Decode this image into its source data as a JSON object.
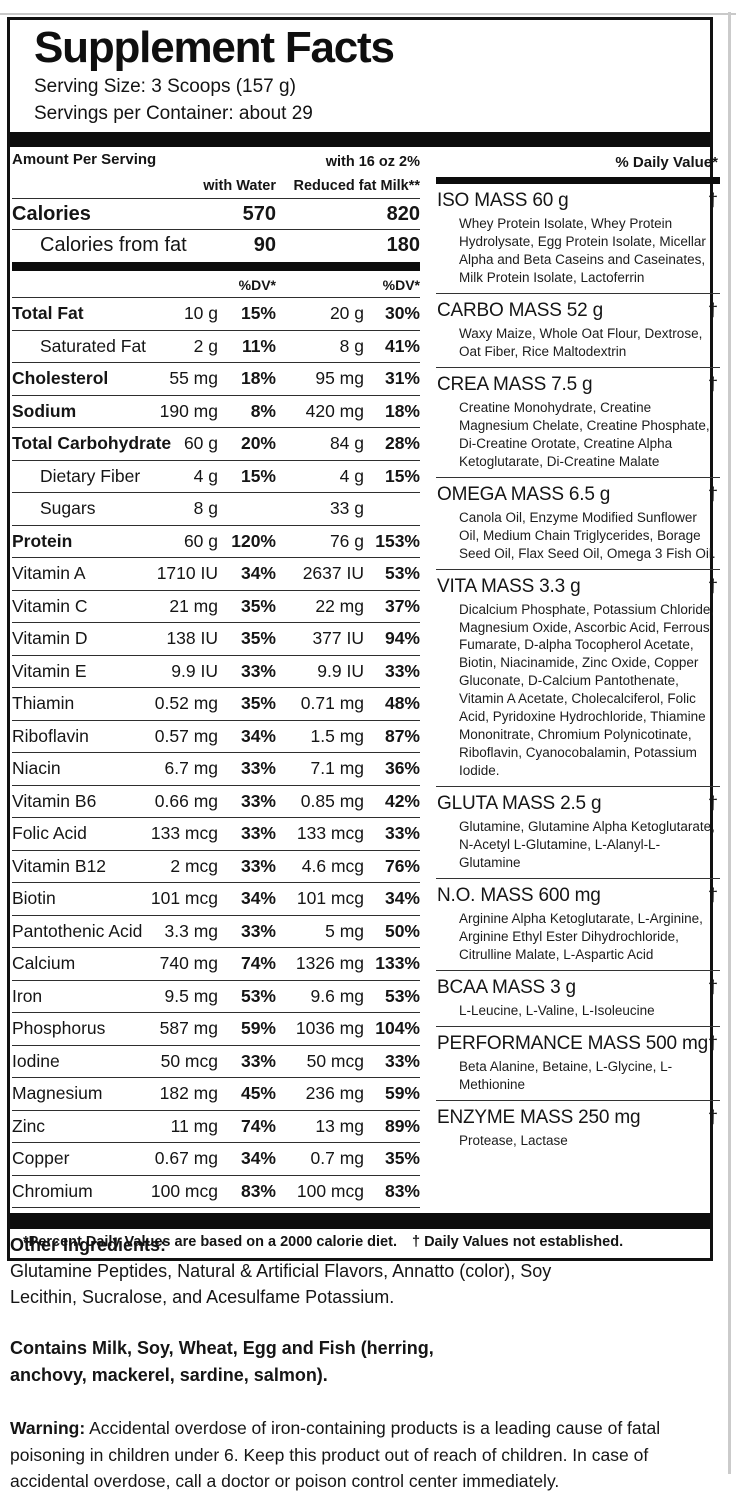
{
  "header": {
    "title": "Supplement Facts",
    "serving_size": "Serving Size: 3 Scoops (157 g)",
    "servings_per_container": "Servings per Container: about 29"
  },
  "table": {
    "amount_per_serving_label": "Amount Per Serving",
    "daily_value_label": "% Daily Value*",
    "col_water_label": "with Water",
    "col_milk_label_line1": "with 16 oz 2%",
    "col_milk_label_line2": "Reduced fat Milk**",
    "dv_col_label": "%DV*",
    "calories_rows": [
      {
        "label": "Calories",
        "water": "570",
        "milk": "820"
      },
      {
        "label": "Calories from fat",
        "water": "90",
        "milk": "180"
      }
    ],
    "nutrients": [
      {
        "label": "Total Fat",
        "style": "main",
        "water_amount": "10 g",
        "water_dv": "15%",
        "milk_amount": "20 g",
        "milk_dv": "30%"
      },
      {
        "label": "Saturated Fat",
        "style": "sub",
        "water_amount": "2 g",
        "water_dv": "11%",
        "milk_amount": "8 g",
        "milk_dv": "41%"
      },
      {
        "label": "Cholesterol",
        "style": "main",
        "water_amount": "55 mg",
        "water_dv": "18%",
        "milk_amount": "95 mg",
        "milk_dv": "31%"
      },
      {
        "label": "Sodium",
        "style": "main",
        "water_amount": "190 mg",
        "water_dv": "8%",
        "milk_amount": "420 mg",
        "milk_dv": "18%"
      },
      {
        "label": "Total Carbohydrate",
        "style": "main",
        "water_amount": "60 g",
        "water_dv": "20%",
        "milk_amount": "84 g",
        "milk_dv": "28%"
      },
      {
        "label": "Dietary Fiber",
        "style": "sub",
        "water_amount": "4 g",
        "water_dv": "15%",
        "milk_amount": "4 g",
        "milk_dv": "15%"
      },
      {
        "label": "Sugars",
        "style": "sub",
        "water_amount": "8 g",
        "water_dv": "",
        "milk_amount": "33 g",
        "milk_dv": ""
      },
      {
        "label": "Protein",
        "style": "main",
        "water_amount": "60 g",
        "water_dv": "120%",
        "milk_amount": "76 g",
        "milk_dv": "153%"
      },
      {
        "label": "Vitamin A",
        "style": "plain",
        "water_amount": "1710 IU",
        "water_dv": "34%",
        "milk_amount": "2637 IU",
        "milk_dv": "53%"
      },
      {
        "label": "Vitamin C",
        "style": "plain",
        "water_amount": "21 mg",
        "water_dv": "35%",
        "milk_amount": "22 mg",
        "milk_dv": "37%"
      },
      {
        "label": "Vitamin D",
        "style": "plain",
        "water_amount": "138 IU",
        "water_dv": "35%",
        "milk_amount": "377 IU",
        "milk_dv": "94%"
      },
      {
        "label": "Vitamin E",
        "style": "plain",
        "water_amount": "9.9 IU",
        "water_dv": "33%",
        "milk_amount": "9.9 IU",
        "milk_dv": "33%"
      },
      {
        "label": "Thiamin",
        "style": "plain",
        "water_amount": "0.52 mg",
        "water_dv": "35%",
        "milk_amount": "0.71 mg",
        "milk_dv": "48%"
      },
      {
        "label": "Riboflavin",
        "style": "plain",
        "water_amount": "0.57 mg",
        "water_dv": "34%",
        "milk_amount": "1.5 mg",
        "milk_dv": "87%"
      },
      {
        "label": "Niacin",
        "style": "plain",
        "water_amount": "6.7 mg",
        "water_dv": "33%",
        "milk_amount": "7.1 mg",
        "milk_dv": "36%"
      },
      {
        "label": "Vitamin B6",
        "style": "plain",
        "water_amount": "0.66 mg",
        "water_dv": "33%",
        "milk_amount": "0.85 mg",
        "milk_dv": "42%"
      },
      {
        "label": "Folic Acid",
        "style": "plain",
        "water_amount": "133 mcg",
        "water_dv": "33%",
        "milk_amount": "133 mcg",
        "milk_dv": "33%"
      },
      {
        "label": "Vitamin B12",
        "style": "plain",
        "water_amount": "2 mcg",
        "water_dv": "33%",
        "milk_amount": "4.6 mcg",
        "milk_dv": "76%"
      },
      {
        "label": "Biotin",
        "style": "plain",
        "water_amount": "101 mcg",
        "water_dv": "34%",
        "milk_amount": "101 mcg",
        "milk_dv": "34%"
      },
      {
        "label": "Pantothenic Acid",
        "style": "plain",
        "water_amount": "3.3 mg",
        "water_dv": "33%",
        "milk_amount": "5 mg",
        "milk_dv": "50%"
      },
      {
        "label": "Calcium",
        "style": "plain",
        "water_amount": "740 mg",
        "water_dv": "74%",
        "milk_amount": "1326 mg",
        "milk_dv": "133%"
      },
      {
        "label": "Iron",
        "style": "plain",
        "water_amount": "9.5 mg",
        "water_dv": "53%",
        "milk_amount": "9.6 mg",
        "milk_dv": "53%"
      },
      {
        "label": "Phosphorus",
        "style": "plain",
        "water_amount": "587 mg",
        "water_dv": "59%",
        "milk_amount": "1036 mg",
        "milk_dv": "104%"
      },
      {
        "label": "Iodine",
        "style": "plain",
        "water_amount": "50 mcg",
        "water_dv": "33%",
        "milk_amount": "50 mcg",
        "milk_dv": "33%"
      },
      {
        "label": "Magnesium",
        "style": "plain",
        "water_amount": "182 mg",
        "water_dv": "45%",
        "milk_amount": "236 mg",
        "milk_dv": "59%"
      },
      {
        "label": "Zinc",
        "style": "plain",
        "water_amount": "11 mg",
        "water_dv": "74%",
        "milk_amount": "13 mg",
        "milk_dv": "89%"
      },
      {
        "label": "Copper",
        "style": "plain",
        "water_amount": "0.67 mg",
        "water_dv": "34%",
        "milk_amount": "0.7 mg",
        "milk_dv": "35%"
      },
      {
        "label": "Chromium",
        "style": "plain",
        "water_amount": "100 mcg",
        "water_dv": "83%",
        "milk_amount": "100 mcg",
        "milk_dv": "83%"
      }
    ]
  },
  "blends": [
    {
      "name": "ISO MASS 60 g",
      "daily_value": "†",
      "ingredients": "Whey Protein Isolate, Whey Protein Hydrolysate, Egg Protein Isolate, Micellar Alpha and Beta Caseins and Caseinates, Milk Protein Isolate, Lactoferrin"
    },
    {
      "name": "CARBO MASS 52 g",
      "daily_value": "†",
      "ingredients": "Waxy Maize, Whole Oat Flour, Dextrose, Oat Fiber, Rice Maltodextrin"
    },
    {
      "name": "CREA MASS 7.5 g",
      "daily_value": "†",
      "ingredients": "Creatine Monohydrate, Creatine Magnesium Chelate, Creatine Phosphate, Di-Creatine Orotate, Creatine Alpha Ketoglutarate, Di-Creatine Malate"
    },
    {
      "name": "OMEGA MASS 6.5 g",
      "daily_value": "†",
      "ingredients": "Canola Oil, Enzyme Modified Sunflower Oil, Medium Chain Triglycerides, Borage Seed Oil, Flax Seed Oil, Omega 3 Fish Oil."
    },
    {
      "name": "VITA MASS 3.3 g",
      "daily_value": "†",
      "ingredients": "Dicalcium Phosphate, Potassium Chloride, Magnesium Oxide, Ascorbic Acid, Ferrous Fumarate, D-alpha Tocopherol Acetate, Biotin, Niacinamide, Zinc Oxide, Copper Gluconate, D-Calcium Pantothenate, Vitamin A Acetate, Cholecalciferol, Folic Acid, Pyridoxine Hydrochloride, Thiamine Mononitrate, Chromium Polynicotinate, Riboflavin, Cyanocobalamin, Potassium Iodide."
    },
    {
      "name": "GLUTA MASS 2.5 g",
      "daily_value": "†",
      "ingredients": "Glutamine, Glutamine Alpha Ketoglutarate, N-Acetyl L-Glutamine, L-Alanyl-L-Glutamine"
    },
    {
      "name": "N.O. MASS 600 mg",
      "daily_value": "†",
      "ingredients": "Arginine Alpha Ketoglutarate, L-Arginine, Arginine Ethyl Ester Dihydrochloride, Citrulline Malate, L-Aspartic Acid"
    },
    {
      "name": "BCAA MASS 3 g",
      "daily_value": "†",
      "ingredients": "L-Leucine, L-Valine, L-Isoleucine"
    },
    {
      "name": "PERFORMANCE MASS 500 mg",
      "daily_value": "†",
      "ingredients": "Beta Alanine, Betaine, L-Glycine, L-Methionine"
    },
    {
      "name": "ENZYME MASS 250 mg",
      "daily_value": "†",
      "ingredients": "Protease, Lactase"
    }
  ],
  "footnotes": {
    "percent_dv": "*Percent Daily Values are based on a 2000 calorie diet.",
    "dagger": "† Daily Values not established."
  },
  "other_ingredients": {
    "heading": "Other Ingredients:",
    "text": "Glutamine Peptides, Natural & Artificial Flavors, Annatto (color), Soy Lecithin, Sucralose, and Acesulfame Potassium."
  },
  "allergens": "Contains Milk, Soy, Wheat, Egg and Fish (herring, anchovy, mackerel, sardine, salmon).",
  "warning": {
    "label": "Warning:",
    "text": "Accidental overdose of iron-containing products is a leading cause of fatal poisoning in children under 6. Keep this product out of reach of children. In case of accidental overdose, call a doctor or poison control center immediately."
  }
}
